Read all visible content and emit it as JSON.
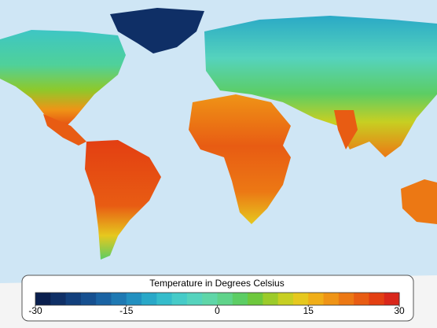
{
  "legend": {
    "title": "Temperature in Degrees Celsius",
    "range": [
      -30,
      30
    ],
    "ticks": [
      -30,
      -15,
      0,
      15,
      30
    ],
    "colors": [
      "#0a1f4e",
      "#0f2f66",
      "#123f7c",
      "#165090",
      "#1a63a3",
      "#1e79b3",
      "#2290c0",
      "#29a8c8",
      "#35bccb",
      "#46cbc8",
      "#55d3bd",
      "#5fd6a8",
      "#5fd38a",
      "#5ccd64",
      "#6ec83d",
      "#9ccb2a",
      "#c7cf22",
      "#e6c81e",
      "#f0ae18",
      "#ef9416",
      "#ec7814",
      "#e85c13",
      "#e33f12",
      "#d9261a"
    ]
  }
}
